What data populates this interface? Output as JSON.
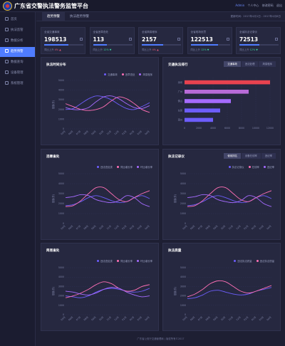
{
  "header": {
    "title": "广东省交警执法警务监管平台",
    "user": "Admin",
    "links": [
      "个人中心",
      "修改密码",
      "退出"
    ]
  },
  "sidebar": {
    "items": [
      {
        "label": "首页",
        "active": false
      },
      {
        "label": "执法监管",
        "active": false
      },
      {
        "label": "数据分析",
        "active": false
      },
      {
        "label": "趋势预警",
        "active": true
      },
      {
        "label": "数据查询",
        "active": false
      },
      {
        "label": "设备管理",
        "active": false
      },
      {
        "label": "系统管理",
        "active": false
      }
    ]
  },
  "tabs": [
    {
      "label": "趋势预警",
      "active": true
    },
    {
      "label": "执法趋势预警",
      "active": false
    }
  ],
  "update_time": "更新时间：2017年4月1日 - 2017年4月8日",
  "stats": [
    {
      "label": "全省交通事故",
      "value": "198513",
      "cmp_label": "同比上升",
      "cmp_value": "4%",
      "dir": "up",
      "progress": 0.62
    },
    {
      "label": "全省违章查处",
      "value": "113",
      "cmp_label": "同比上升",
      "cmp_value": "12%",
      "dir": "dn",
      "progress": 0.35
    },
    {
      "label": "全省简易程序",
      "value": "2157",
      "cmp_label": "同比上升",
      "cmp_value": "4%",
      "dir": "up",
      "progress": 0.55
    },
    {
      "label": "全省现场处罚",
      "value": "122513",
      "cmp_label": "同比上升",
      "cmp_value": "12%",
      "dir": "dn",
      "progress": 0.7
    },
    {
      "label": "全省执法记录仪",
      "value": "72513",
      "cmp_label": "同比上升",
      "cmp_value": "12%",
      "dir": "dn",
      "progress": 0.5
    }
  ],
  "panels": {
    "trend": {
      "title": "执法时间分布",
      "legend": [
        "交通事故",
        "违章查处",
        "简易程序"
      ]
    },
    "ranking": {
      "title": "交通执法排行",
      "segments": [
        "交通事故",
        "违法处理",
        "简易程序"
      ]
    },
    "violation": {
      "title": "违章查处",
      "legend": [
        "违法查处类",
        "同比增长率",
        "环比增长率"
      ]
    },
    "record": {
      "title": "执法记录仪",
      "segments": [
        "使用排名",
        "设备在线率",
        "违纪率"
      ],
      "legend": [
        "执法记录仪",
        "在线率",
        "违纪率"
      ]
    },
    "simple": {
      "title": "简易查处",
      "legend": [
        "违法查处类",
        "同比增长率",
        "环比增长率"
      ]
    },
    "quality": {
      "title": "执法质量",
      "legend": [
        "违法执法质量",
        "违法执法质量"
      ]
    }
  },
  "footer": "广东省公安厅交通管理局 | 版权所有©2017",
  "chart_data": [
    {
      "type": "line",
      "title": "执法时间分布",
      "ylabel": "数量(件)",
      "x": [
        "05月",
        "06月",
        "07月",
        "08月",
        "09月",
        "10月",
        "11月",
        "12月",
        "01月",
        "02月",
        "03月",
        "04月"
      ],
      "ylim": [
        0,
        5000
      ],
      "yticks": [
        "5000",
        "4000",
        "3000",
        "2000",
        "1000",
        "0"
      ],
      "series": [
        {
          "name": "交通事故",
          "values": [
            2000,
            2100,
            2600,
            3100,
            3400,
            3300,
            3000,
            2500,
            2100,
            2000,
            2300,
            2700
          ],
          "color": "#6d5dfc"
        },
        {
          "name": "违章查处",
          "values": [
            2600,
            2300,
            2000,
            1900,
            2000,
            2300,
            2900,
            3300,
            3100,
            2600,
            2000,
            1700
          ],
          "color": "#ff6fb5"
        },
        {
          "name": "简易程序",
          "values": [
            2200,
            2000,
            2000,
            2200,
            2800,
            3300,
            3400,
            3100,
            2600,
            2200,
            2100,
            2400
          ],
          "color": "#a56bff"
        }
      ]
    },
    {
      "type": "bar",
      "title": "交通执法排行",
      "categories": [
        "深圳",
        "广州",
        "佛山",
        "东莞",
        "惠州"
      ],
      "values": [
        12000,
        9000,
        6500,
        5000,
        4000
      ],
      "xticks": [
        "0",
        "2000",
        "4000",
        "6000",
        "8000",
        "10000",
        "12000"
      ],
      "xlim": [
        0,
        12000
      ],
      "colors": [
        "#e8424f",
        "#b86bd8",
        "#a56bff",
        "#6d5dfc",
        "#6d5dfc"
      ]
    },
    {
      "type": "line",
      "title": "违章查处",
      "ylabel": "数量(件)",
      "x": [
        "05月",
        "06月",
        "07月",
        "08月",
        "09月",
        "10月",
        "11月",
        "12月",
        "01月",
        "02月",
        "03月",
        "04月"
      ],
      "ylim": [
        0,
        5000
      ],
      "yticks": [
        "5000",
        "4000",
        "3000",
        "2000",
        "1000",
        "0"
      ],
      "series": [
        {
          "name": "违法查处类",
          "values": [
            1800,
            1900,
            2200,
            2600,
            2800,
            2600,
            2300,
            2100,
            2200,
            2600,
            2800,
            2500
          ],
          "color": "#6d5dfc"
        },
        {
          "name": "同比增长率",
          "values": [
            1700,
            1800,
            2300,
            3000,
            3600,
            3600,
            3000,
            2400,
            2200,
            2600,
            3000,
            3300
          ],
          "color": "#ff6fb5"
        },
        {
          "name": "环比增长率",
          "values": [
            2600,
            2700,
            2900,
            2800,
            2400,
            2200,
            2100,
            2300,
            2800,
            2600,
            2000,
            1700
          ],
          "color": "#a56bff"
        }
      ]
    },
    {
      "type": "line",
      "title": "执法记录仪",
      "ylabel": "数量(件)",
      "x": [
        "05月",
        "06月",
        "07月",
        "08月",
        "09月",
        "10月",
        "11月",
        "12月",
        "01月",
        "02月",
        "03月",
        "04月"
      ],
      "ylim": [
        0,
        5000
      ],
      "yticks": [
        "5000",
        "4000",
        "3000",
        "2000",
        "1000",
        "0"
      ],
      "series": [
        {
          "name": "执法记录仪",
          "values": [
            1800,
            1900,
            2200,
            2600,
            2800,
            2600,
            2300,
            2100,
            2200,
            2600,
            2800,
            2500
          ],
          "color": "#6d5dfc"
        },
        {
          "name": "在线率",
          "values": [
            1700,
            1800,
            2300,
            3000,
            3600,
            3600,
            3000,
            2400,
            2200,
            2600,
            3000,
            3300
          ],
          "color": "#ff6fb5"
        },
        {
          "name": "违纪率",
          "values": [
            2600,
            2700,
            2900,
            2800,
            2400,
            2200,
            2100,
            2300,
            2800,
            2600,
            2000,
            1700
          ],
          "color": "#a56bff"
        }
      ]
    },
    {
      "type": "line",
      "title": "简易查处",
      "ylabel": "数量(件)",
      "x": [
        "05月",
        "06月",
        "07月",
        "08月",
        "09月",
        "10月",
        "11月",
        "12月",
        "01月",
        "02月",
        "03月",
        "04月"
      ],
      "ylim": [
        0,
        5000
      ],
      "yticks": [
        "5000",
        "4000",
        "3000",
        "2000",
        "1000",
        "0"
      ],
      "series": [
        {
          "name": "违法查处类",
          "values": [
            2000,
            1900,
            1800,
            2000,
            2400,
            2700,
            2800,
            2700,
            2500,
            2400,
            2500,
            2800
          ],
          "color": "#6d5dfc"
        },
        {
          "name": "同比增长率",
          "values": [
            1800,
            2000,
            2300,
            2700,
            3200,
            3500,
            3300,
            2800,
            2500,
            2600,
            3000,
            3200
          ],
          "color": "#ff6fb5"
        },
        {
          "name": "环比增长率",
          "values": [
            2500,
            2400,
            2200,
            2100,
            2300,
            2700,
            2900,
            2800,
            2400,
            2100,
            1900,
            2000
          ],
          "color": "#a56bff"
        }
      ]
    },
    {
      "type": "line",
      "title": "执法质量",
      "ylabel": "数量(件)",
      "x": [
        "05月",
        "06月",
        "07月",
        "08月",
        "09月",
        "10月",
        "11月",
        "12月",
        "01月",
        "02月",
        "03月",
        "04月"
      ],
      "ylim": [
        0,
        5000
      ],
      "yticks": [
        "5000",
        "4000",
        "3000",
        "2000",
        "1000",
        "0"
      ],
      "series": [
        {
          "name": "违法执法质量",
          "values": [
            1700,
            1800,
            2100,
            2500,
            2600,
            2400,
            2200,
            2100,
            2200,
            2500,
            2700,
            2900
          ],
          "color": "#6d5dfc"
        },
        {
          "name": "违法执法质量",
          "values": [
            1900,
            2200,
            2700,
            3300,
            3600,
            3500,
            3000,
            2500,
            2300,
            2500,
            2800,
            3100
          ],
          "color": "#ff6fb5"
        }
      ]
    }
  ]
}
